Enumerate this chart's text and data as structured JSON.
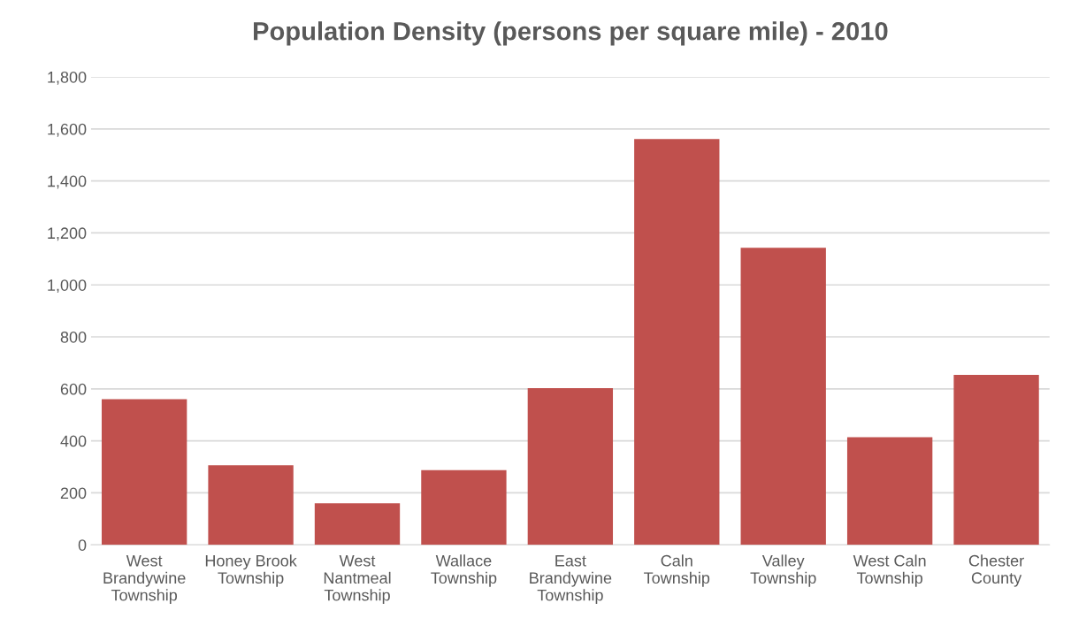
{
  "chart_data": {
    "type": "bar",
    "title": "Population Density (persons per square mile) - 2010",
    "categories": [
      "West Brandywine Township",
      "Honey Brook Township",
      "West Nantmeal Township",
      "Wallace Township",
      "East Brandywine Township",
      "Caln Township",
      "Valley Township",
      "West Caln Township",
      "Chester County"
    ],
    "values": [
      560,
      306,
      160,
      287,
      603,
      1561,
      1143,
      414,
      654
    ],
    "color": "#c0504d",
    "ylim": [
      0,
      1800
    ],
    "yticks": [
      {
        "value": 0,
        "label": "0"
      },
      {
        "value": 200,
        "label": "200"
      },
      {
        "value": 400,
        "label": "400"
      },
      {
        "value": 600,
        "label": "600"
      },
      {
        "value": 800,
        "label": "800"
      },
      {
        "value": 1000,
        "label": "1,000"
      },
      {
        "value": 1200,
        "label": "1,200"
      },
      {
        "value": 1400,
        "label": "1,400"
      },
      {
        "value": 1600,
        "label": "1,600"
      },
      {
        "value": 1800,
        "label": "1,800"
      }
    ],
    "grid": "y"
  }
}
